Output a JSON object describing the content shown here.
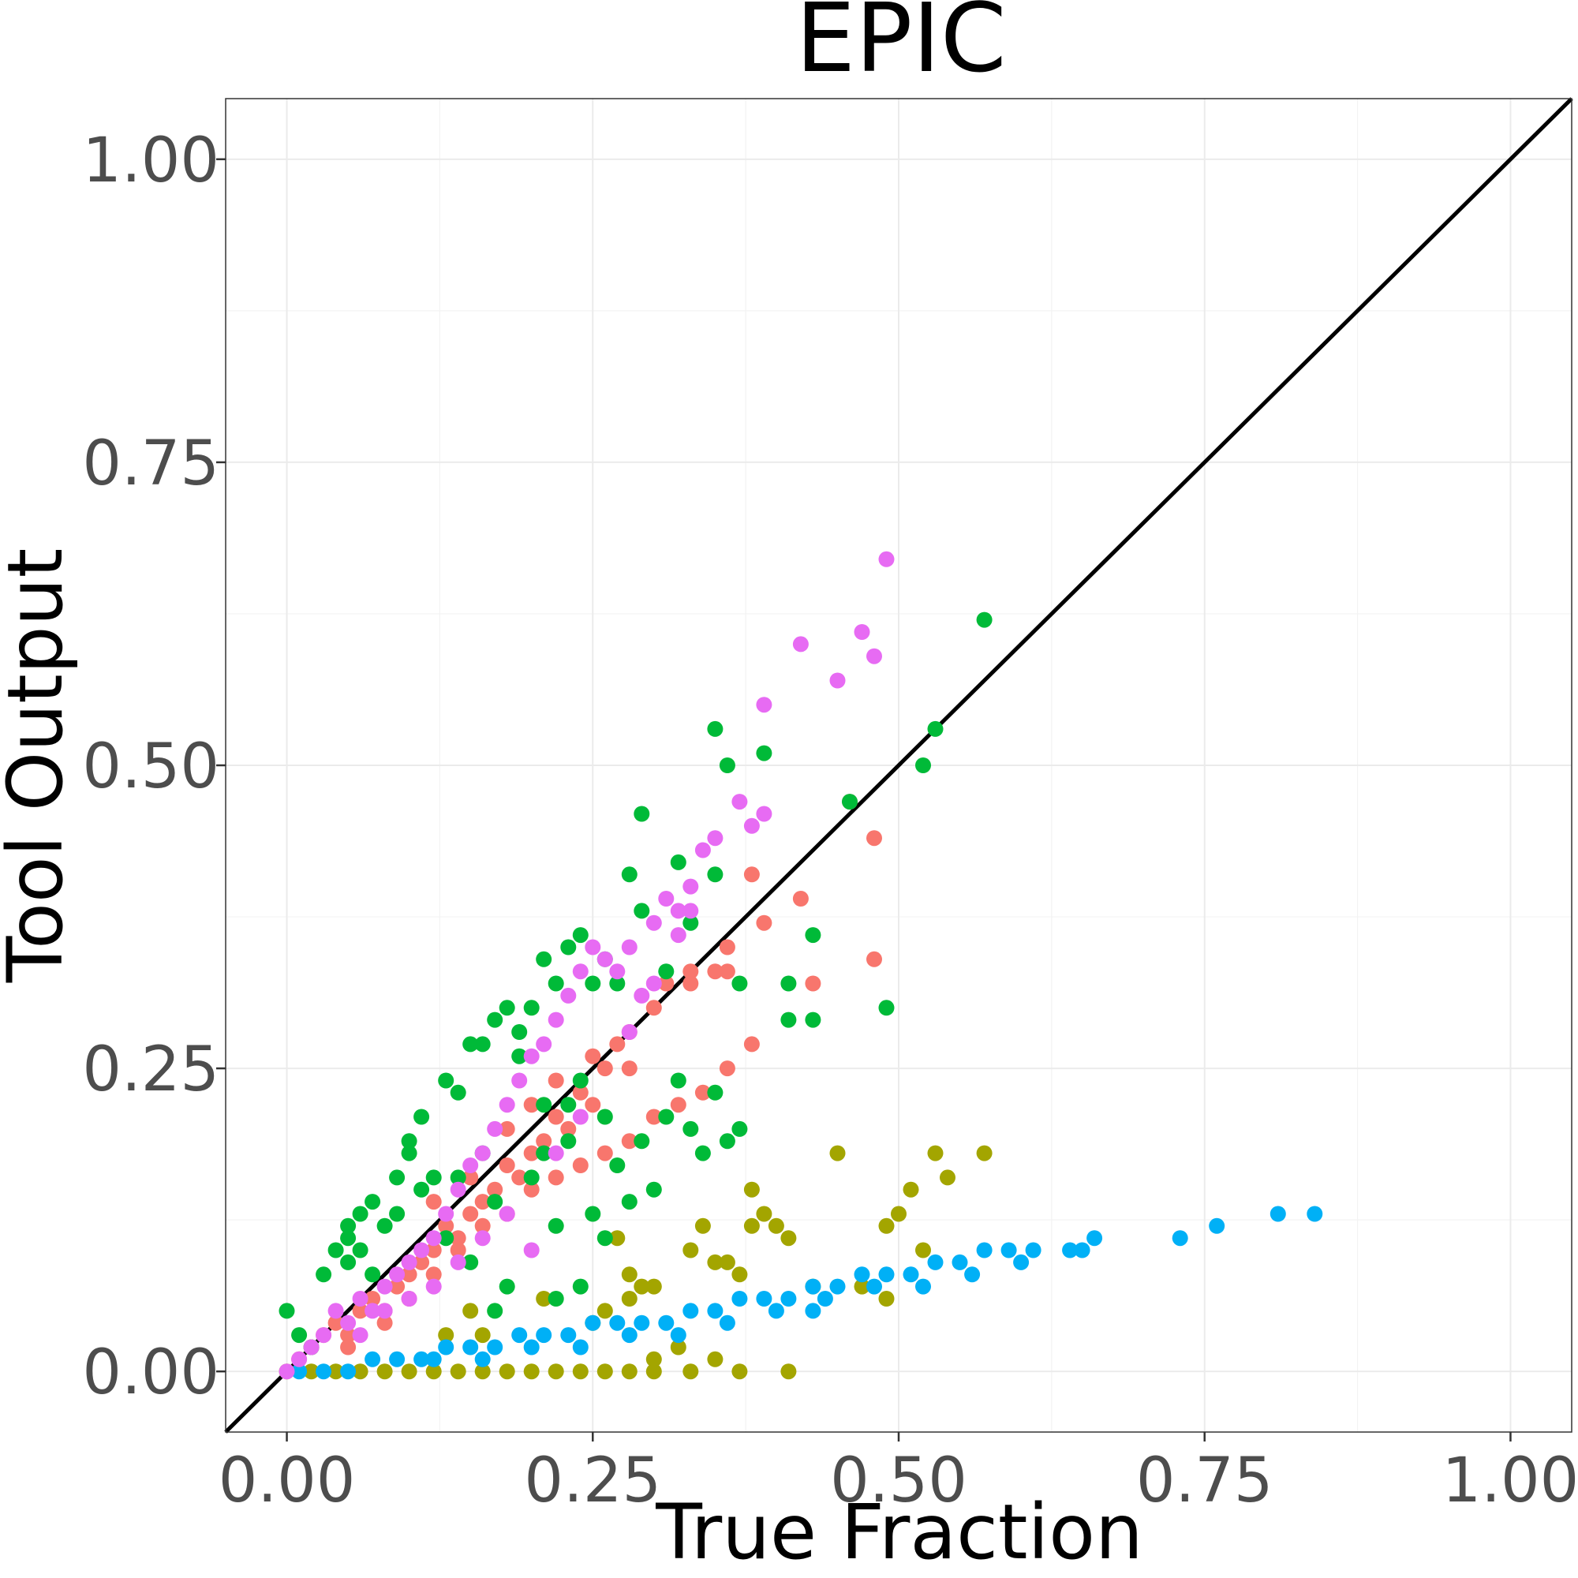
{
  "chart_data": {
    "type": "scatter",
    "title": "EPIC",
    "xlabel": "True Fraction",
    "ylabel": "Tool Output",
    "xlim": [
      -0.05,
      1.05
    ],
    "ylim": [
      -0.05,
      1.05
    ],
    "x_ticks": [
      "0.00",
      "0.25",
      "0.50",
      "0.75",
      "1.00"
    ],
    "y_ticks": [
      "0.00",
      "0.25",
      "0.50",
      "0.75",
      "1.00"
    ],
    "grid": true,
    "legend": "none",
    "reference_line": {
      "type": "identity",
      "color": "#000000"
    },
    "series": [
      {
        "color": "#F8766D",
        "points": [
          [
            0.01,
            0.01
          ],
          [
            0.02,
            0.02
          ],
          [
            0.03,
            0.03
          ],
          [
            0.04,
            0.04
          ],
          [
            0.05,
            0.03
          ],
          [
            0.06,
            0.05
          ],
          [
            0.07,
            0.06
          ],
          [
            0.08,
            0.05
          ],
          [
            0.09,
            0.07
          ],
          [
            0.1,
            0.08
          ],
          [
            0.11,
            0.09
          ],
          [
            0.12,
            0.1
          ],
          [
            0.13,
            0.12
          ],
          [
            0.14,
            0.11
          ],
          [
            0.15,
            0.13
          ],
          [
            0.16,
            0.14
          ],
          [
            0.17,
            0.15
          ],
          [
            0.18,
            0.17
          ],
          [
            0.19,
            0.16
          ],
          [
            0.2,
            0.18
          ],
          [
            0.21,
            0.19
          ],
          [
            0.22,
            0.21
          ],
          [
            0.23,
            0.2
          ],
          [
            0.24,
            0.23
          ],
          [
            0.25,
            0.22
          ],
          [
            0.26,
            0.25
          ],
          [
            0.27,
            0.27
          ],
          [
            0.28,
            0.28
          ],
          [
            0.3,
            0.3
          ],
          [
            0.31,
            0.32
          ],
          [
            0.33,
            0.33
          ],
          [
            0.35,
            0.33
          ],
          [
            0.36,
            0.35
          ],
          [
            0.38,
            0.41
          ],
          [
            0.39,
            0.37
          ],
          [
            0.42,
            0.39
          ],
          [
            0.43,
            0.32
          ],
          [
            0.46,
            0.47
          ],
          [
            0.48,
            0.44
          ],
          [
            0.48,
            0.34
          ],
          [
            0.05,
            0.02
          ],
          [
            0.08,
            0.04
          ],
          [
            0.1,
            0.06
          ],
          [
            0.12,
            0.08
          ],
          [
            0.14,
            0.1
          ],
          [
            0.16,
            0.12
          ],
          [
            0.18,
            0.13
          ],
          [
            0.2,
            0.15
          ],
          [
            0.22,
            0.16
          ],
          [
            0.24,
            0.17
          ],
          [
            0.26,
            0.18
          ],
          [
            0.28,
            0.19
          ],
          [
            0.3,
            0.21
          ],
          [
            0.32,
            0.22
          ],
          [
            0.34,
            0.23
          ],
          [
            0.36,
            0.25
          ],
          [
            0.38,
            0.27
          ],
          [
            0.12,
            0.14
          ],
          [
            0.15,
            0.16
          ],
          [
            0.18,
            0.2
          ],
          [
            0.2,
            0.22
          ],
          [
            0.22,
            0.24
          ],
          [
            0.25,
            0.26
          ],
          [
            0.28,
            0.25
          ],
          [
            0.33,
            0.32
          ],
          [
            0.36,
            0.33
          ]
        ]
      },
      {
        "color": "#A3A500",
        "points": [
          [
            0.0,
            0.0
          ],
          [
            0.02,
            0.0
          ],
          [
            0.04,
            0.0
          ],
          [
            0.06,
            0.0
          ],
          [
            0.08,
            0.0
          ],
          [
            0.1,
            0.0
          ],
          [
            0.12,
            0.0
          ],
          [
            0.14,
            0.0
          ],
          [
            0.16,
            0.0
          ],
          [
            0.18,
            0.0
          ],
          [
            0.2,
            0.0
          ],
          [
            0.22,
            0.0
          ],
          [
            0.24,
            0.0
          ],
          [
            0.26,
            0.0
          ],
          [
            0.28,
            0.0
          ],
          [
            0.3,
            0.0
          ],
          [
            0.33,
            0.0
          ],
          [
            0.37,
            0.0
          ],
          [
            0.41,
            0.0
          ],
          [
            0.13,
            0.03
          ],
          [
            0.15,
            0.05
          ],
          [
            0.16,
            0.03
          ],
          [
            0.21,
            0.06
          ],
          [
            0.25,
            0.04
          ],
          [
            0.26,
            0.05
          ],
          [
            0.28,
            0.06
          ],
          [
            0.27,
            0.11
          ],
          [
            0.28,
            0.08
          ],
          [
            0.29,
            0.07
          ],
          [
            0.3,
            0.07
          ],
          [
            0.33,
            0.1
          ],
          [
            0.34,
            0.12
          ],
          [
            0.35,
            0.09
          ],
          [
            0.36,
            0.09
          ],
          [
            0.37,
            0.08
          ],
          [
            0.38,
            0.15
          ],
          [
            0.38,
            0.12
          ],
          [
            0.39,
            0.13
          ],
          [
            0.4,
            0.12
          ],
          [
            0.41,
            0.11
          ],
          [
            0.45,
            0.18
          ],
          [
            0.49,
            0.12
          ],
          [
            0.5,
            0.13
          ],
          [
            0.51,
            0.15
          ],
          [
            0.49,
            0.06
          ],
          [
            0.52,
            0.1
          ],
          [
            0.53,
            0.18
          ],
          [
            0.54,
            0.16
          ],
          [
            0.57,
            0.18
          ],
          [
            0.43,
            0.07
          ],
          [
            0.47,
            0.07
          ],
          [
            0.3,
            0.01
          ],
          [
            0.32,
            0.02
          ],
          [
            0.35,
            0.01
          ]
        ]
      },
      {
        "color": "#00BA38",
        "points": [
          [
            0.0,
            0.05
          ],
          [
            0.01,
            0.03
          ],
          [
            0.02,
            0.02
          ],
          [
            0.03,
            0.08
          ],
          [
            0.04,
            0.1
          ],
          [
            0.05,
            0.11
          ],
          [
            0.05,
            0.12
          ],
          [
            0.06,
            0.13
          ],
          [
            0.07,
            0.14
          ],
          [
            0.08,
            0.12
          ],
          [
            0.09,
            0.16
          ],
          [
            0.1,
            0.18
          ],
          [
            0.1,
            0.19
          ],
          [
            0.11,
            0.21
          ],
          [
            0.12,
            0.16
          ],
          [
            0.13,
            0.24
          ],
          [
            0.14,
            0.23
          ],
          [
            0.15,
            0.27
          ],
          [
            0.16,
            0.27
          ],
          [
            0.17,
            0.29
          ],
          [
            0.18,
            0.3
          ],
          [
            0.19,
            0.28
          ],
          [
            0.2,
            0.3
          ],
          [
            0.21,
            0.34
          ],
          [
            0.22,
            0.32
          ],
          [
            0.23,
            0.35
          ],
          [
            0.24,
            0.36
          ],
          [
            0.25,
            0.32
          ],
          [
            0.26,
            0.34
          ],
          [
            0.27,
            0.32
          ],
          [
            0.28,
            0.41
          ],
          [
            0.29,
            0.46
          ],
          [
            0.29,
            0.38
          ],
          [
            0.31,
            0.33
          ],
          [
            0.32,
            0.42
          ],
          [
            0.33,
            0.37
          ],
          [
            0.35,
            0.41
          ],
          [
            0.35,
            0.53
          ],
          [
            0.36,
            0.5
          ],
          [
            0.39,
            0.51
          ],
          [
            0.37,
            0.32
          ],
          [
            0.41,
            0.32
          ],
          [
            0.43,
            0.36
          ],
          [
            0.41,
            0.29
          ],
          [
            0.43,
            0.29
          ],
          [
            0.46,
            0.47
          ],
          [
            0.49,
            0.3
          ],
          [
            0.52,
            0.5
          ],
          [
            0.53,
            0.53
          ],
          [
            0.57,
            0.62
          ],
          [
            0.14,
            0.16
          ],
          [
            0.16,
            0.18
          ],
          [
            0.17,
            0.14
          ],
          [
            0.18,
            0.07
          ],
          [
            0.2,
            0.16
          ],
          [
            0.21,
            0.18
          ],
          [
            0.22,
            0.12
          ],
          [
            0.23,
            0.22
          ],
          [
            0.24,
            0.24
          ],
          [
            0.25,
            0.13
          ],
          [
            0.26,
            0.21
          ],
          [
            0.27,
            0.17
          ],
          [
            0.28,
            0.14
          ],
          [
            0.29,
            0.19
          ],
          [
            0.3,
            0.15
          ],
          [
            0.31,
            0.21
          ],
          [
            0.32,
            0.24
          ],
          [
            0.33,
            0.2
          ],
          [
            0.34,
            0.18
          ],
          [
            0.35,
            0.23
          ],
          [
            0.36,
            0.19
          ],
          [
            0.37,
            0.2
          ],
          [
            0.05,
            0.09
          ],
          [
            0.06,
            0.1
          ],
          [
            0.07,
            0.08
          ],
          [
            0.09,
            0.13
          ],
          [
            0.11,
            0.15
          ],
          [
            0.13,
            0.11
          ],
          [
            0.15,
            0.09
          ],
          [
            0.17,
            0.05
          ],
          [
            0.22,
            0.06
          ],
          [
            0.24,
            0.07
          ],
          [
            0.26,
            0.11
          ],
          [
            0.19,
            0.26
          ],
          [
            0.21,
            0.22
          ],
          [
            0.23,
            0.19
          ]
        ]
      },
      {
        "color": "#00B0F6",
        "points": [
          [
            0.01,
            0.0
          ],
          [
            0.03,
            0.0
          ],
          [
            0.05,
            0.0
          ],
          [
            0.07,
            0.01
          ],
          [
            0.09,
            0.01
          ],
          [
            0.11,
            0.01
          ],
          [
            0.13,
            0.02
          ],
          [
            0.15,
            0.02
          ],
          [
            0.17,
            0.02
          ],
          [
            0.19,
            0.03
          ],
          [
            0.21,
            0.03
          ],
          [
            0.23,
            0.03
          ],
          [
            0.25,
            0.04
          ],
          [
            0.27,
            0.04
          ],
          [
            0.29,
            0.04
          ],
          [
            0.31,
            0.04
          ],
          [
            0.33,
            0.05
          ],
          [
            0.35,
            0.05
          ],
          [
            0.37,
            0.06
          ],
          [
            0.39,
            0.06
          ],
          [
            0.41,
            0.06
          ],
          [
            0.43,
            0.07
          ],
          [
            0.45,
            0.07
          ],
          [
            0.47,
            0.08
          ],
          [
            0.49,
            0.08
          ],
          [
            0.51,
            0.08
          ],
          [
            0.53,
            0.09
          ],
          [
            0.55,
            0.09
          ],
          [
            0.57,
            0.1
          ],
          [
            0.59,
            0.1
          ],
          [
            0.61,
            0.1
          ],
          [
            0.64,
            0.1
          ],
          [
            0.66,
            0.11
          ],
          [
            0.73,
            0.11
          ],
          [
            0.76,
            0.12
          ],
          [
            0.81,
            0.13
          ],
          [
            0.84,
            0.13
          ],
          [
            0.12,
            0.01
          ],
          [
            0.16,
            0.01
          ],
          [
            0.2,
            0.02
          ],
          [
            0.24,
            0.02
          ],
          [
            0.28,
            0.03
          ],
          [
            0.32,
            0.03
          ],
          [
            0.36,
            0.04
          ],
          [
            0.4,
            0.05
          ],
          [
            0.44,
            0.06
          ],
          [
            0.48,
            0.07
          ],
          [
            0.52,
            0.07
          ],
          [
            0.56,
            0.08
          ],
          [
            0.43,
            0.05
          ],
          [
            0.65,
            0.1
          ],
          [
            0.6,
            0.09
          ]
        ]
      },
      {
        "color": "#E76BF3",
        "points": [
          [
            0.0,
            0.0
          ],
          [
            0.01,
            0.01
          ],
          [
            0.02,
            0.02
          ],
          [
            0.03,
            0.03
          ],
          [
            0.04,
            0.05
          ],
          [
            0.05,
            0.04
          ],
          [
            0.06,
            0.06
          ],
          [
            0.07,
            0.05
          ],
          [
            0.08,
            0.07
          ],
          [
            0.09,
            0.08
          ],
          [
            0.1,
            0.09
          ],
          [
            0.11,
            0.1
          ],
          [
            0.12,
            0.11
          ],
          [
            0.13,
            0.13
          ],
          [
            0.14,
            0.15
          ],
          [
            0.15,
            0.17
          ],
          [
            0.16,
            0.18
          ],
          [
            0.17,
            0.2
          ],
          [
            0.18,
            0.22
          ],
          [
            0.19,
            0.24
          ],
          [
            0.2,
            0.26
          ],
          [
            0.21,
            0.27
          ],
          [
            0.22,
            0.29
          ],
          [
            0.23,
            0.31
          ],
          [
            0.24,
            0.33
          ],
          [
            0.25,
            0.35
          ],
          [
            0.26,
            0.34
          ],
          [
            0.27,
            0.33
          ],
          [
            0.28,
            0.35
          ],
          [
            0.29,
            0.31
          ],
          [
            0.3,
            0.37
          ],
          [
            0.31,
            0.39
          ],
          [
            0.32,
            0.38
          ],
          [
            0.33,
            0.4
          ],
          [
            0.34,
            0.43
          ],
          [
            0.35,
            0.44
          ],
          [
            0.37,
            0.47
          ],
          [
            0.38,
            0.45
          ],
          [
            0.39,
            0.46
          ],
          [
            0.39,
            0.55
          ],
          [
            0.42,
            0.6
          ],
          [
            0.45,
            0.57
          ],
          [
            0.47,
            0.61
          ],
          [
            0.48,
            0.59
          ],
          [
            0.49,
            0.67
          ],
          [
            0.06,
            0.03
          ],
          [
            0.08,
            0.05
          ],
          [
            0.1,
            0.06
          ],
          [
            0.12,
            0.07
          ],
          [
            0.14,
            0.09
          ],
          [
            0.16,
            0.11
          ],
          [
            0.18,
            0.13
          ],
          [
            0.2,
            0.1
          ],
          [
            0.22,
            0.18
          ],
          [
            0.24,
            0.21
          ],
          [
            0.28,
            0.28
          ],
          [
            0.3,
            0.32
          ],
          [
            0.32,
            0.36
          ],
          [
            0.33,
            0.38
          ]
        ]
      }
    ]
  }
}
